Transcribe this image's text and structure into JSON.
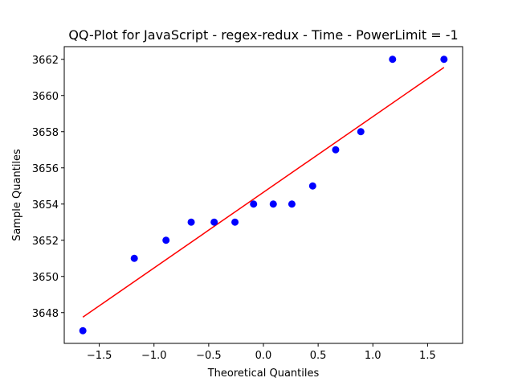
{
  "chart_data": {
    "type": "scatter",
    "title": "QQ-Plot for JavaScript - regex-redux - Time - PowerLimit = -1",
    "xlabel": "Theoretical Quantiles",
    "ylabel": "Sample Quantiles",
    "xlim": [
      -1.82,
      1.82
    ],
    "ylim": [
      3646.3,
      3662.7
    ],
    "xticks": [
      -1.5,
      -1.0,
      -0.5,
      0.0,
      0.5,
      1.0,
      1.5
    ],
    "xtick_labels": [
      "−1.5",
      "−1.0",
      "−0.5",
      "0.0",
      "0.5",
      "1.0",
      "1.5"
    ],
    "yticks": [
      3648,
      3650,
      3652,
      3654,
      3656,
      3658,
      3660,
      3662
    ],
    "ytick_labels": [
      "3648",
      "3650",
      "3652",
      "3654",
      "3656",
      "3658",
      "3660",
      "3662"
    ],
    "grid": false,
    "series": [
      {
        "kind": "points",
        "color": "#0000ff",
        "x": [
          -1.65,
          -1.18,
          -0.89,
          -0.66,
          -0.45,
          -0.26,
          -0.09,
          0.09,
          0.26,
          0.45,
          0.66,
          0.89,
          1.18,
          1.65
        ],
        "y": [
          3647,
          3651,
          3652,
          3653,
          3653,
          3653,
          3654,
          3654,
          3654,
          3655,
          3657,
          3658,
          3662,
          3662
        ]
      },
      {
        "kind": "line",
        "color": "#ff0000",
        "x": [
          -1.65,
          1.65
        ],
        "y": [
          3647.75,
          3661.55
        ]
      }
    ]
  }
}
